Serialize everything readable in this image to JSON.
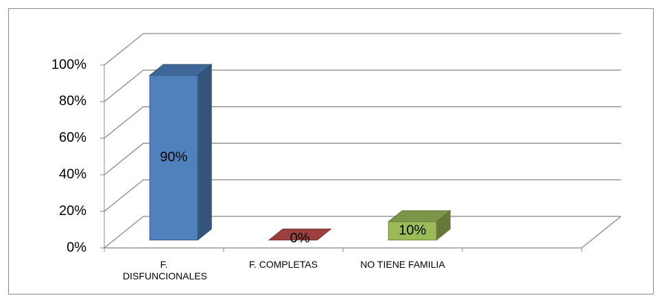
{
  "chart_data": {
    "type": "bar3d",
    "categories": [
      "F. DISFUNCIONALES",
      "F. COMPLETAS",
      "NO TIENE FAMILIA"
    ],
    "values": [
      90,
      0,
      10
    ],
    "value_labels": [
      "90%",
      "0%",
      "10%"
    ],
    "colors": [
      "#4f81bd",
      "#c0504d",
      "#9bbb59"
    ],
    "ylim": [
      0,
      100
    ],
    "yticks": [
      {
        "value": 0,
        "label": "0%"
      },
      {
        "value": 20,
        "label": "20%"
      },
      {
        "value": 40,
        "label": "40%"
      },
      {
        "value": 60,
        "label": "60%"
      },
      {
        "value": 80,
        "label": "80%"
      },
      {
        "value": 100,
        "label": "100%"
      }
    ],
    "grid": true
  }
}
